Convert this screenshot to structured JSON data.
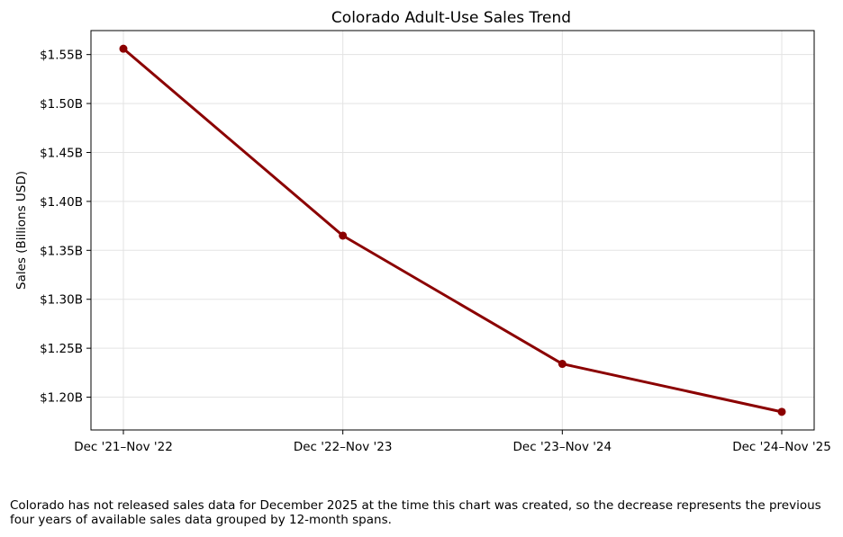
{
  "chart_data": {
    "type": "line",
    "title": "Colorado Adult-Use Sales Trend",
    "xlabel": "",
    "ylabel": "Sales (Billions USD)",
    "categories": [
      "Dec '21–Nov '22",
      "Dec '22–Nov '23",
      "Dec '23–Nov '24",
      "Dec '24–Nov '25"
    ],
    "values": [
      1.556,
      1.365,
      1.234,
      1.185
    ],
    "yticks": [
      1.2,
      1.25,
      1.3,
      1.35,
      1.4,
      1.45,
      1.5,
      1.55
    ],
    "ytick_labels": [
      "$1.20B",
      "$1.25B",
      "$1.30B",
      "$1.35B",
      "$1.40B",
      "$1.45B",
      "$1.50B",
      "$1.55B"
    ],
    "ylim": [
      1.1665,
      1.5745
    ],
    "grid": true,
    "line_color": "#8b0000"
  },
  "footnote": "Colorado has not released sales data for December 2025 at the time this chart was created, so the decrease represents the previous four years of available sales data grouped by 12-month spans."
}
